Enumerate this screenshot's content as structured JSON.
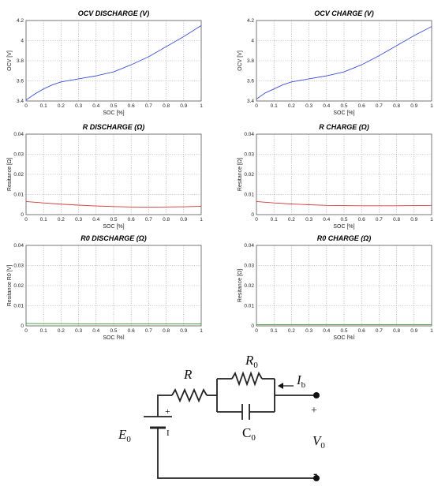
{
  "chart_data": [
    {
      "id": "ocv-discharge",
      "type": "line",
      "title": "OCV DISCHARGE (V)",
      "xlabel": "SOC [%]",
      "ylabel": "OCV [V]",
      "xlim": [
        0,
        1
      ],
      "ylim": [
        3.4,
        4.2
      ],
      "xticks": [
        "0",
        "0.1",
        "0.2",
        "0.3",
        "0.4",
        "0.5",
        "0.6",
        "0.7",
        "0.8",
        "0.9",
        "1"
      ],
      "yticks": [
        "3.4",
        "3.6",
        "3.8",
        "4",
        "4.2"
      ],
      "grid": true,
      "series": [
        {
          "color": "#3a4fd8",
          "x": [
            0,
            0.05,
            0.1,
            0.15,
            0.2,
            0.3,
            0.4,
            0.5,
            0.6,
            0.7,
            0.8,
            0.9,
            1.0
          ],
          "y": [
            3.41,
            3.47,
            3.52,
            3.56,
            3.59,
            3.62,
            3.65,
            3.69,
            3.76,
            3.84,
            3.94,
            4.04,
            4.15
          ]
        }
      ]
    },
    {
      "id": "ocv-charge",
      "type": "line",
      "title": "OCV CHARGE (V)",
      "xlabel": "SOC [%]",
      "ylabel": "OCV [V]",
      "xlim": [
        0,
        1
      ],
      "ylim": [
        3.4,
        4.2
      ],
      "xticks": [
        "0",
        "0.1",
        "0.2",
        "0.3",
        "0.4",
        "0.5",
        "0.6",
        "0.7",
        "0.8",
        "0.9",
        "1"
      ],
      "yticks": [
        "3.4",
        "3.6",
        "3.8",
        "4",
        "4.2"
      ],
      "grid": true,
      "series": [
        {
          "color": "#3a4fd8",
          "x": [
            0,
            0.05,
            0.1,
            0.15,
            0.2,
            0.3,
            0.4,
            0.5,
            0.6,
            0.7,
            0.8,
            0.9,
            1.0
          ],
          "y": [
            3.42,
            3.48,
            3.52,
            3.56,
            3.59,
            3.62,
            3.65,
            3.69,
            3.76,
            3.85,
            3.95,
            4.05,
            4.14
          ]
        }
      ]
    },
    {
      "id": "r-discharge",
      "type": "line",
      "title": "R DISCHARGE (Ω)",
      "xlabel": "SOC [%]",
      "ylabel": "Resitance [Ω]",
      "xlim": [
        0,
        1
      ],
      "ylim": [
        0,
        0.04
      ],
      "xticks": [
        "0",
        "0.1",
        "0.2",
        "0.3",
        "0.4",
        "0.5",
        "0.6",
        "0.7",
        "0.8",
        "0.9",
        "1"
      ],
      "yticks": [
        "0",
        "0.01",
        "0.02",
        "0.03",
        "0.04"
      ],
      "grid": true,
      "series": [
        {
          "color": "#d43a3a",
          "x": [
            0,
            0.1,
            0.2,
            0.3,
            0.4,
            0.5,
            0.6,
            0.7,
            0.8,
            0.9,
            1.0
          ],
          "y": [
            0.0065,
            0.0058,
            0.0052,
            0.0047,
            0.0043,
            0.004,
            0.0038,
            0.0037,
            0.0038,
            0.0039,
            0.0041
          ]
        }
      ]
    },
    {
      "id": "r-charge",
      "type": "line",
      "title": "R CHARGE (Ω)",
      "xlabel": "SOC [%]",
      "ylabel": "Resitance [Ω]",
      "xlim": [
        0,
        1
      ],
      "ylim": [
        0,
        0.04
      ],
      "xticks": [
        "0",
        "0.1",
        "0.2",
        "0.3",
        "0.4",
        "0.5",
        "0.6",
        "0.7",
        "0.8",
        "0.9",
        "1"
      ],
      "yticks": [
        "0",
        "0.01",
        "0.02",
        "0.03",
        "0.04"
      ],
      "grid": true,
      "series": [
        {
          "color": "#d43a3a",
          "x": [
            0,
            0.1,
            0.2,
            0.3,
            0.4,
            0.5,
            0.6,
            0.7,
            0.8,
            0.9,
            1.0
          ],
          "y": [
            0.0065,
            0.0058,
            0.0053,
            0.0049,
            0.0046,
            0.0045,
            0.0044,
            0.0044,
            0.0044,
            0.0045,
            0.0046
          ]
        }
      ]
    },
    {
      "id": "r0-discharge",
      "type": "line",
      "title": "R0 DISCHARGE (Ω)",
      "xlabel": "SOC [%]",
      "ylabel": "Resitance R0 [V]",
      "xlim": [
        0,
        1
      ],
      "ylim": [
        0,
        0.04
      ],
      "xticks": [
        "0",
        "0.1",
        "0.2",
        "0.3",
        "0.4",
        "0.5",
        "0.6",
        "0.7",
        "0.8",
        "0.9",
        "1"
      ],
      "yticks": [
        "0",
        "0.01",
        "0.02",
        "0.03",
        "0.04"
      ],
      "grid": true,
      "series": [
        {
          "color": "#2c9a2c",
          "x": [
            0,
            0.1,
            0.2,
            0.3,
            0.4,
            0.5,
            0.6,
            0.7,
            0.8,
            0.9,
            1.0
          ],
          "y": [
            0.0012,
            0.0011,
            0.0011,
            0.001,
            0.001,
            0.001,
            0.001,
            0.001,
            0.001,
            0.001,
            0.001
          ]
        }
      ]
    },
    {
      "id": "r0-charge",
      "type": "line",
      "title": "R0 CHARGE (Ω)",
      "xlabel": "SOC [%]",
      "ylabel": "Resitance [Ω]",
      "xlim": [
        0,
        1
      ],
      "ylim": [
        0,
        0.04
      ],
      "xticks": [
        "0",
        "0.1",
        "0.2",
        "0.3",
        "0.4",
        "0.5",
        "0.6",
        "0.7",
        "0.8",
        "0.9",
        "1"
      ],
      "yticks": [
        "0",
        "0.01",
        "0.02",
        "0.03",
        "0.04"
      ],
      "grid": true,
      "series": [
        {
          "color": "#2c9a2c",
          "x": [
            0,
            0.1,
            0.2,
            0.3,
            0.4,
            0.5,
            0.6,
            0.7,
            0.8,
            0.9,
            1.0
          ],
          "y": [
            0.0006,
            0.0006,
            0.0006,
            0.0006,
            0.0006,
            0.0006,
            0.0006,
            0.0006,
            0.0006,
            0.0006,
            0.0006
          ]
        }
      ]
    }
  ],
  "circuit": {
    "label_r": "R",
    "label_r0": "R",
    "label_r0_sub": "0",
    "label_c0": "C",
    "label_c0_sub": "0",
    "label_e0": "E",
    "label_e0_sub": "0",
    "label_ib": "I",
    "label_ib_sub": "b",
    "label_v0": "V",
    "label_v0_sub": "0",
    "label_plus_battery": "+",
    "label_minus_battery": "I",
    "label_plus_terminal": "+",
    "label_minus_terminal": "-"
  }
}
